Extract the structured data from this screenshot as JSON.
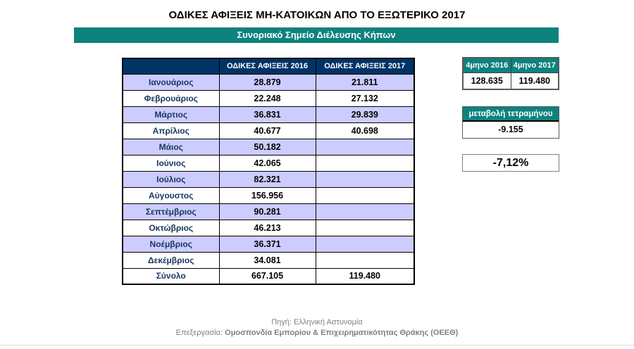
{
  "page": {
    "title": "ΟΔΙΚΕΣ ΑΦΙΞΕΙΣ ΜΗ-ΚΑΤΟΙΚΩΝ ΑΠΟ ΤΟ ΕΞΩΤΕΡΙΚΟ 2017",
    "subtitle": "Συνοριακό Σημείο Διέλευσης Κήπων"
  },
  "colors": {
    "teal_accent": "#0E827D",
    "navy_header": "#003366",
    "lavender_row": "#CCCCFF",
    "footer_gray": "#7F7F7F"
  },
  "main_table": {
    "headers": [
      "",
      "ΟΔΙΚΕΣ ΑΦΙΞΕΙΣ 2016",
      "ΟΔΙΚΕΣ ΑΦΙΞΕΙΣ 2017"
    ],
    "rows": [
      {
        "month": "Ιανουάριος",
        "arrivals_2016": "28.879",
        "arrivals_2017": "21.811"
      },
      {
        "month": "Φεβρουάριος",
        "arrivals_2016": "22.248",
        "arrivals_2017": "27.132"
      },
      {
        "month": "Μάρτιος",
        "arrivals_2016": "36.831",
        "arrivals_2017": "29.839"
      },
      {
        "month": "Απρίλιος",
        "arrivals_2016": "40.677",
        "arrivals_2017": "40.698"
      },
      {
        "month": "Μάιος",
        "arrivals_2016": "50.182",
        "arrivals_2017": ""
      },
      {
        "month": "Ιούνιος",
        "arrivals_2016": "42.065",
        "arrivals_2017": ""
      },
      {
        "month": "Ιούλιος",
        "arrivals_2016": "82.321",
        "arrivals_2017": ""
      },
      {
        "month": "Αύγουστος",
        "arrivals_2016": "156.956",
        "arrivals_2017": ""
      },
      {
        "month": "Σεπτέμβριος",
        "arrivals_2016": "90.281",
        "arrivals_2017": ""
      },
      {
        "month": "Οκτώβριος",
        "arrivals_2016": "46.213",
        "arrivals_2017": ""
      },
      {
        "month": "Νοέμβριος",
        "arrivals_2016": "36.371",
        "arrivals_2017": ""
      },
      {
        "month": "Δεκέμβριος",
        "arrivals_2016": "34.081",
        "arrivals_2017": ""
      }
    ],
    "total": {
      "label": "Σύνολο",
      "arrivals_2016": "667.105",
      "arrivals_2017": "119.480"
    }
  },
  "four_month_summary": {
    "headers": [
      "4μηνο 2016",
      "4μηνο 2017"
    ],
    "values": [
      "128.635",
      "119.480"
    ]
  },
  "change_panel": {
    "label": "μεταβολή τετραμήνου",
    "value": "-9.155"
  },
  "percent_change": "-7,12%",
  "footer": {
    "source_line": "Πηγή: Ελληνική Αστυνομία",
    "processing_label": "Επεξεργασία:",
    "processing_org": "Ομοσπονδία Εμπορίου & Επιχειρηματικότητας Θράκης (ΟΕΕΘ)"
  }
}
